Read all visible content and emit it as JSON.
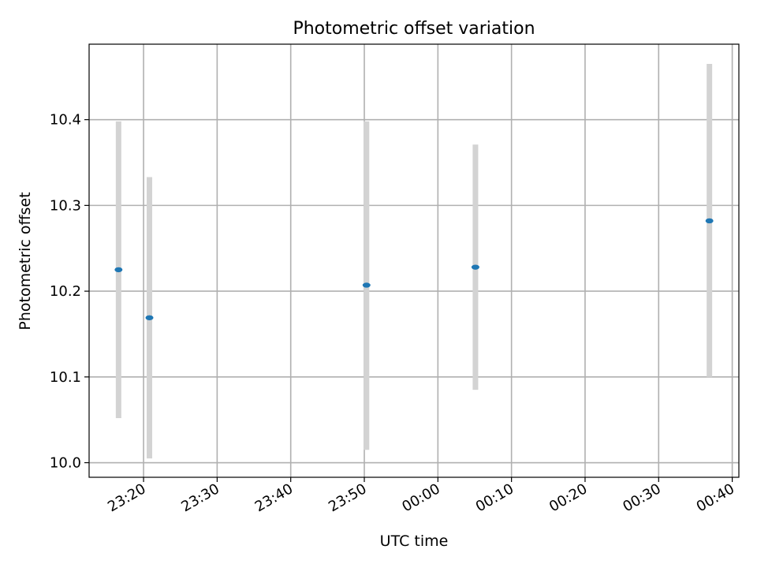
{
  "chart_data": {
    "type": "scatter",
    "title": "Photometric offset variation",
    "xlabel": "UTC time",
    "ylabel": "Photometric offset",
    "x_ticks": [
      "23:20",
      "23:30",
      "23:40",
      "23:50",
      "00:00",
      "00:10",
      "00:20",
      "00:30",
      "00:40"
    ],
    "y_ticks": [
      "10.0",
      "10.1",
      "10.2",
      "10.3",
      "10.4"
    ],
    "xlim": [
      "23:12.6",
      "00:40.9"
    ],
    "ylim": [
      9.983,
      10.488
    ],
    "grid": true,
    "point_color": "#1f77b4",
    "errorbar_color": "#d3d3d3",
    "points": [
      {
        "x": "23:16.6",
        "y": 10.225,
        "y_low": 10.052,
        "y_high": 10.398
      },
      {
        "x": "23:20.8",
        "y": 10.169,
        "y_low": 10.005,
        "y_high": 10.333
      },
      {
        "x": "23:50.3",
        "y": 10.207,
        "y_low": 10.015,
        "y_high": 10.398
      },
      {
        "x": "00:05.1",
        "y": 10.228,
        "y_low": 10.085,
        "y_high": 10.371
      },
      {
        "x": "00:36.9",
        "y": 10.282,
        "y_low": 10.1,
        "y_high": 10.465
      }
    ]
  }
}
